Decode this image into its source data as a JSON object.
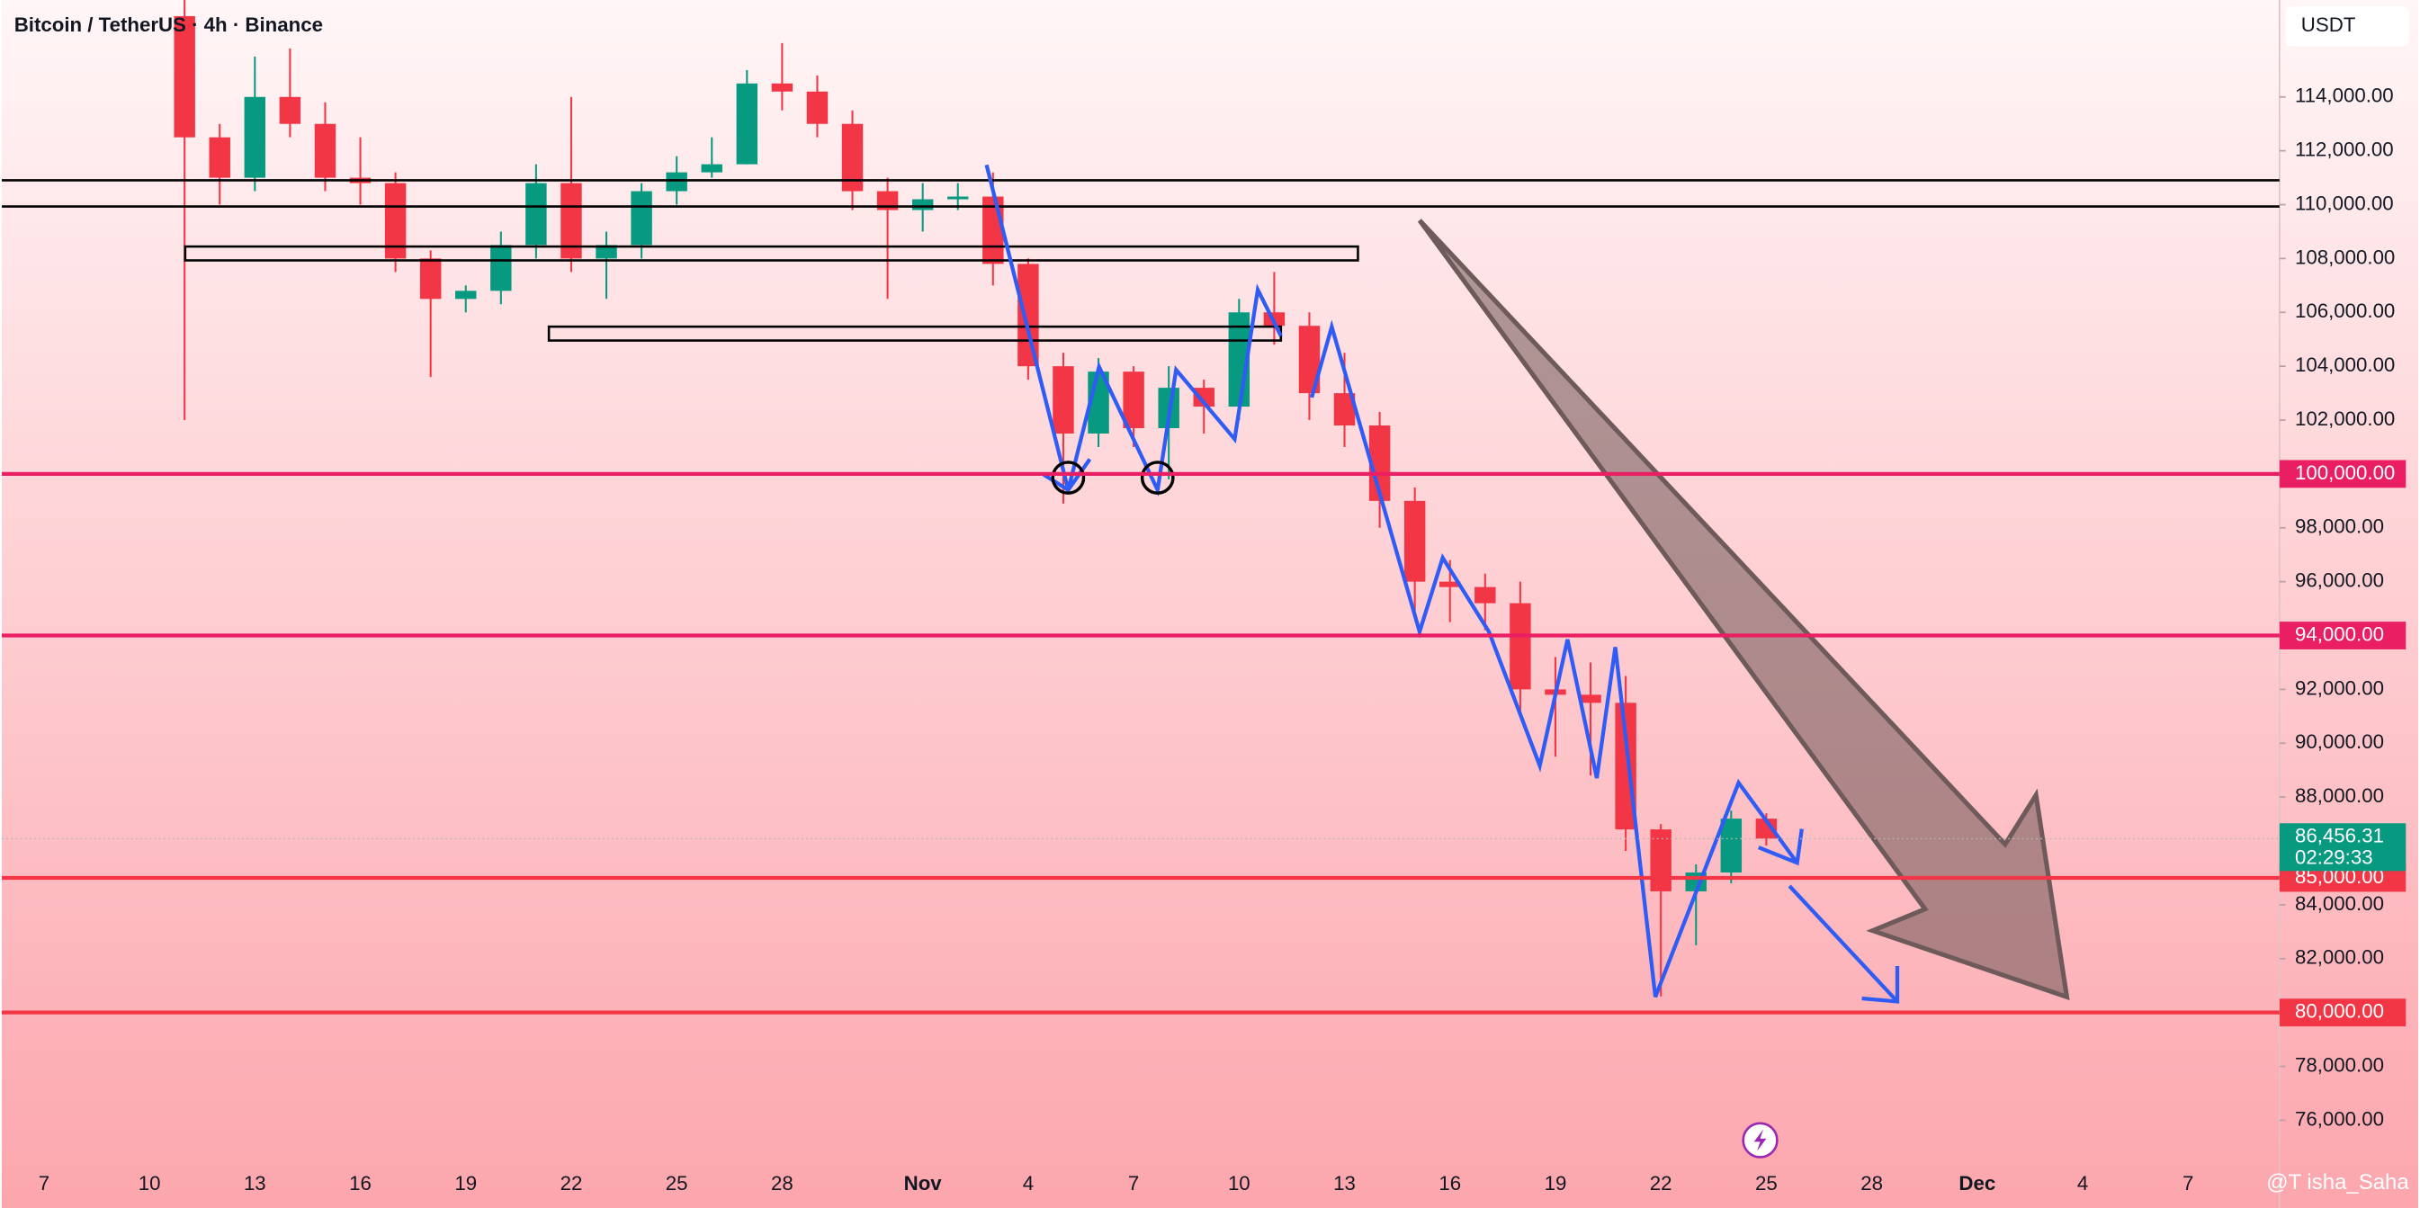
{
  "chart_data": {
    "type": "candlestick",
    "title": "Bitcoin / TetherUS · 4h · Binance",
    "currency": "USDT",
    "watermark": "@T isha_Saha",
    "up_color": "#089981",
    "down_color": "#f23645",
    "xlim": [
      -1.2,
      63.6
    ],
    "xticks": [
      {
        "value": 0,
        "label": "7"
      },
      {
        "value": 3,
        "label": "10"
      },
      {
        "value": 6,
        "label": "13"
      },
      {
        "value": 9,
        "label": "16"
      },
      {
        "value": 12,
        "label": "19"
      },
      {
        "value": 15,
        "label": "22"
      },
      {
        "value": 18,
        "label": "25"
      },
      {
        "value": 21,
        "label": "28"
      },
      {
        "value": 25,
        "label": "Nov"
      },
      {
        "value": 28,
        "label": "4"
      },
      {
        "value": 31,
        "label": "7"
      },
      {
        "value": 34,
        "label": "10"
      },
      {
        "value": 37,
        "label": "13"
      },
      {
        "value": 40,
        "label": "16"
      },
      {
        "value": 43,
        "label": "19"
      },
      {
        "value": 46,
        "label": "22"
      },
      {
        "value": 49,
        "label": "25"
      },
      {
        "value": 52,
        "label": "28"
      },
      {
        "value": 55,
        "label": "Dec"
      },
      {
        "value": 58,
        "label": "4"
      },
      {
        "value": 61,
        "label": "7"
      }
    ],
    "ylim": [
      74400,
      117600
    ],
    "yticks": [
      {
        "value": 76000,
        "label": "76,000.00"
      },
      {
        "value": 78000,
        "label": "78,000.00"
      },
      {
        "value": 82000,
        "label": "82,000.00"
      },
      {
        "value": 84000,
        "label": "84,000.00"
      },
      {
        "value": 88000,
        "label": "88,000.00"
      },
      {
        "value": 90000,
        "label": "90,000.00"
      },
      {
        "value": 92000,
        "label": "92,000.00"
      },
      {
        "value": 96000,
        "label": "96,000.00"
      },
      {
        "value": 98000,
        "label": "98,000.00"
      },
      {
        "value": 102000,
        "label": "102,000.00"
      },
      {
        "value": 104000,
        "label": "104,000.00"
      },
      {
        "value": 106000,
        "label": "106,000.00"
      },
      {
        "value": 108000,
        "label": "108,000.00"
      },
      {
        "value": 110000,
        "label": "110,000.00"
      },
      {
        "value": 112000,
        "label": "112,000.00"
      },
      {
        "value": 114000,
        "label": "114,000.00"
      }
    ],
    "levels": [
      {
        "value": 100000,
        "label": "100,000.00",
        "color": "#e91e63"
      },
      {
        "value": 94000,
        "label": "94,000.00",
        "color": "#e91e63"
      },
      {
        "value": 85000,
        "label": "85,000.00",
        "color": "#f23645"
      },
      {
        "value": 80000,
        "label": "80,000.00",
        "color": "#f23645"
      }
    ],
    "last_price": {
      "value": 86456.31,
      "label": "86,456.31"
    },
    "countdown": "02:29:33",
    "candles": {
      "x": [
        4,
        5,
        6,
        7,
        8,
        9,
        10,
        11,
        12,
        13,
        14,
        15,
        16,
        17,
        18,
        19,
        20,
        21,
        22,
        23,
        24,
        25,
        26,
        27,
        28,
        29,
        30,
        31,
        32,
        33,
        34,
        35,
        36,
        37,
        38,
        39,
        40,
        41,
        42,
        43,
        44,
        45,
        46,
        47,
        48,
        49
      ],
      "open": [
        117000,
        112500,
        111000,
        114000,
        113000,
        111000,
        110800,
        108000,
        106500,
        106800,
        108500,
        110800,
        108000,
        108500,
        110500,
        111200,
        111500,
        114500,
        114200,
        113000,
        110500,
        109800,
        110200,
        110300,
        107800,
        104000,
        101500,
        103800,
        101700,
        103200,
        102500,
        106000,
        105500,
        103000,
        101800,
        99000,
        96000,
        95800,
        95200,
        92000,
        91800,
        91500,
        86800,
        84500,
        85200,
        87200
      ],
      "high": [
        117600,
        113000,
        115500,
        115800,
        113800,
        112500,
        111200,
        108300,
        107000,
        109000,
        111500,
        114000,
        109000,
        110800,
        111800,
        112500,
        115000,
        116000,
        114800,
        113500,
        111000,
        110800,
        110800,
        111200,
        108000,
        104500,
        104300,
        104000,
        104000,
        103500,
        106500,
        107500,
        106000,
        104500,
        102300,
        99500,
        96800,
        96300,
        96000,
        93200,
        93000,
        92500,
        87000,
        85500,
        87500,
        87400
      ],
      "low": [
        102000,
        110000,
        110500,
        112500,
        110500,
        110000,
        107500,
        103600,
        106000,
        106300,
        108000,
        107500,
        106500,
        108000,
        110000,
        111000,
        111500,
        113500,
        112500,
        109800,
        106500,
        109000,
        109800,
        107000,
        103500,
        98900,
        101000,
        101000,
        99800,
        101500,
        102000,
        104800,
        102000,
        101000,
        98000,
        94800,
        94500,
        94200,
        91000,
        89500,
        88800,
        86000,
        80600,
        82500,
        84800,
        86200
      ],
      "close": [
        112500,
        111000,
        114000,
        113000,
        111000,
        110800,
        108000,
        106500,
        106800,
        108500,
        110800,
        108000,
        108500,
        110500,
        111200,
        111500,
        114500,
        114200,
        113000,
        110500,
        109800,
        110200,
        110300,
        107800,
        104000,
        101500,
        103800,
        101700,
        103200,
        102500,
        106000,
        105500,
        103000,
        101800,
        99000,
        96000,
        95800,
        95200,
        92000,
        91800,
        91500,
        86800,
        84500,
        85200,
        87200,
        86456.31
      ]
    }
  }
}
